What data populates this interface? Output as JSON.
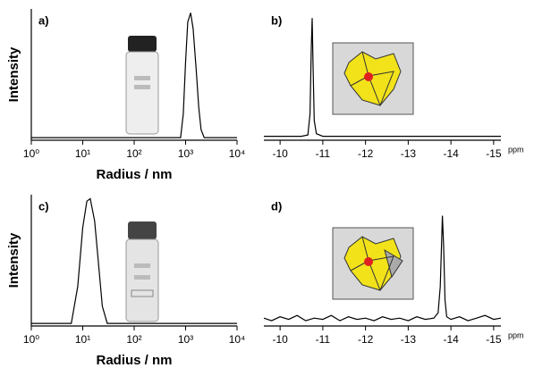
{
  "chart_data": [
    {
      "type": "line",
      "panel_label": "a)",
      "y_label": "Intensity",
      "x_label": "Radius / nm",
      "log_x": true,
      "color": "#000000",
      "x": [
        1,
        800,
        900,
        1000,
        1100,
        1250,
        1400,
        1600,
        1800,
        2000,
        2300,
        10000
      ],
      "values": [
        0.02,
        0.02,
        0.2,
        0.6,
        0.9,
        0.97,
        0.85,
        0.55,
        0.25,
        0.08,
        0.02,
        0.02
      ],
      "xlim": [
        1,
        10000
      ],
      "ylim": [
        0,
        1
      ],
      "xticks": [
        {
          "value": 1,
          "label": "10⁰"
        },
        {
          "value": 10,
          "label": "10¹"
        },
        {
          "value": 100,
          "label": "10²"
        },
        {
          "value": 1000,
          "label": "10³"
        },
        {
          "value": 10000,
          "label": "10⁴"
        }
      ]
    },
    {
      "type": "line",
      "panel_label": "b)",
      "x_unit": "ppm",
      "color": "#000000",
      "x": [
        -9.62,
        -10.5,
        -10.65,
        -10.7,
        -10.73,
        -10.75,
        -10.77,
        -10.8,
        -10.85,
        -11.0,
        -12,
        -13,
        -14,
        -15.17
      ],
      "values": [
        0.03,
        0.03,
        0.04,
        0.2,
        0.7,
        0.93,
        0.6,
        0.15,
        0.05,
        0.03,
        0.03,
        0.03,
        0.03,
        0.03
      ],
      "xlim": [
        -9.62,
        -15.17
      ],
      "ylim": [
        0,
        1
      ],
      "xticks": [
        -10,
        -11,
        -12,
        -13,
        -14,
        -15
      ]
    },
    {
      "type": "line",
      "panel_label": "c)",
      "y_label": "Intensity",
      "x_label": "Radius / nm",
      "log_x": true,
      "color": "#000000",
      "x": [
        1,
        6,
        8,
        10,
        12,
        14,
        17,
        20,
        24,
        30,
        10000
      ],
      "values": [
        0.02,
        0.02,
        0.3,
        0.75,
        0.95,
        0.97,
        0.8,
        0.5,
        0.15,
        0.02,
        0.02
      ],
      "xlim": [
        1,
        10000
      ],
      "ylim": [
        0,
        1
      ],
      "xticks": [
        {
          "value": 1,
          "label": "10⁰"
        },
        {
          "value": 10,
          "label": "10¹"
        },
        {
          "value": 100,
          "label": "10²"
        },
        {
          "value": 1000,
          "label": "10³"
        },
        {
          "value": 10000,
          "label": "10⁴"
        }
      ]
    },
    {
      "type": "line",
      "panel_label": "d)",
      "x_unit": "ppm",
      "color": "#000000",
      "x": [
        -9.62,
        -9.8,
        -10.0,
        -10.2,
        -10.4,
        -10.6,
        -10.8,
        -11.0,
        -11.2,
        -11.4,
        -11.6,
        -11.8,
        -12.0,
        -12.2,
        -12.4,
        -12.6,
        -12.8,
        -13.0,
        -13.2,
        -13.4,
        -13.6,
        -13.7,
        -13.75,
        -13.8,
        -13.83,
        -13.86,
        -13.9,
        -14.0,
        -14.2,
        -14.4,
        -14.6,
        -14.8,
        -15.0,
        -15.17
      ],
      "values": [
        0.06,
        0.04,
        0.07,
        0.05,
        0.08,
        0.04,
        0.06,
        0.05,
        0.08,
        0.04,
        0.07,
        0.05,
        0.06,
        0.04,
        0.07,
        0.05,
        0.06,
        0.04,
        0.07,
        0.05,
        0.06,
        0.1,
        0.3,
        0.84,
        0.6,
        0.2,
        0.07,
        0.05,
        0.07,
        0.04,
        0.06,
        0.08,
        0.05,
        0.06
      ],
      "xlim": [
        -9.62,
        -15.17
      ],
      "ylim": [
        0,
        1
      ],
      "xticks": [
        -10,
        -11,
        -12,
        -13,
        -14,
        -15
      ]
    }
  ]
}
